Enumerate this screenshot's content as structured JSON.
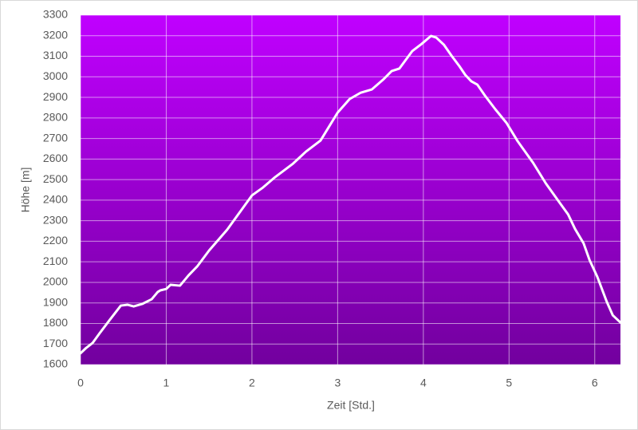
{
  "chart_data": {
    "type": "line",
    "x_label": "Zeit [Std.]",
    "y_label": "Höhe [m]",
    "x": [
      0,
      0.065,
      0.14,
      0.22,
      0.34,
      0.47,
      0.55,
      0.62,
      0.72,
      0.83,
      0.9,
      0.93,
      1.0,
      1.05,
      1.16,
      1.26,
      1.36,
      1.5,
      1.71,
      2.0,
      2.13,
      2.27,
      2.48,
      2.63,
      2.8,
      3.0,
      3.14,
      3.27,
      3.4,
      3.53,
      3.63,
      3.72,
      3.87,
      3.98,
      4.09,
      4.15,
      4.24,
      4.33,
      4.42,
      4.49,
      4.56,
      4.63,
      4.72,
      4.84,
      4.97,
      5.1,
      5.28,
      5.43,
      5.55,
      5.69,
      5.77,
      5.87,
      5.94,
      6.03,
      6.14,
      6.21,
      6.3
    ],
    "series": [
      {
        "color": "#ffffff",
        "values": [
          1655,
          1681,
          1705,
          1751,
          1817,
          1887,
          1891,
          1883,
          1895,
          1918,
          1953,
          1961,
          1968,
          1988,
          1984,
          2034,
          2077,
          2155,
          2256,
          2423,
          2462,
          2512,
          2578,
          2636,
          2690,
          2826,
          2892,
          2923,
          2939,
          2986,
          3028,
          3040,
          3125,
          3160,
          3199,
          3191,
          3156,
          3102,
          3052,
          3009,
          2978,
          2962,
          2908,
          2842,
          2776,
          2687,
          2582,
          2481,
          2411,
          2330,
          2260,
          2190,
          2108,
          2027,
          1906,
          1840,
          1805
        ]
      }
    ],
    "xlim": [
      0,
      6.3
    ],
    "ylim": [
      1600,
      3300
    ],
    "xticks": [
      0,
      1,
      2,
      3,
      4,
      5,
      6
    ],
    "yticks": [
      1600,
      1700,
      1800,
      1900,
      2000,
      2100,
      2200,
      2300,
      2400,
      2500,
      2600,
      2700,
      2800,
      2900,
      3000,
      3100,
      3200,
      3300
    ],
    "grid": true
  }
}
